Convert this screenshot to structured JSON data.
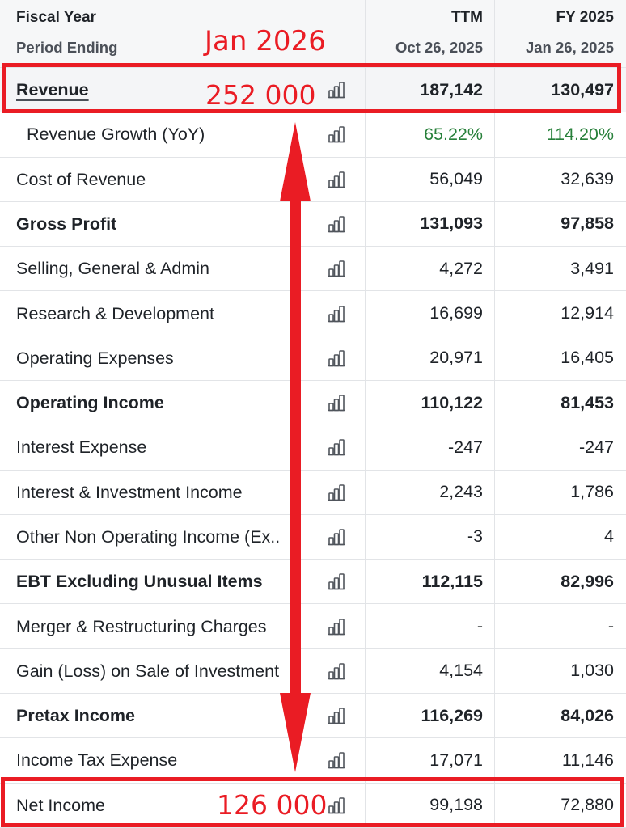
{
  "table": {
    "header": {
      "fiscal_year_label": "Fiscal Year",
      "period_ending_label": "Period Ending",
      "columns": [
        {
          "fiscal_year": "TTM",
          "period_ending": "Oct 26, 2025"
        },
        {
          "fiscal_year": "FY 2025",
          "period_ending": "Jan 26, 2025"
        }
      ]
    },
    "row_icon": "bar-chart-icon",
    "rows": [
      {
        "label": "Revenue",
        "values": [
          "187,142",
          "130,497"
        ]
      },
      {
        "label": "Revenue Growth (YoY)",
        "values": [
          "65.22%",
          "114.20%"
        ]
      },
      {
        "label": "Cost of Revenue",
        "values": [
          "56,049",
          "32,639"
        ]
      },
      {
        "label": "Gross Profit",
        "values": [
          "131,093",
          "97,858"
        ]
      },
      {
        "label": "Selling, General & Admin",
        "values": [
          "4,272",
          "3,491"
        ]
      },
      {
        "label": "Research & Development",
        "values": [
          "16,699",
          "12,914"
        ]
      },
      {
        "label": "Operating Expenses",
        "values": [
          "20,971",
          "16,405"
        ]
      },
      {
        "label": "Operating Income",
        "values": [
          "110,122",
          "81,453"
        ]
      },
      {
        "label": "Interest Expense",
        "values": [
          "-247",
          "-247"
        ]
      },
      {
        "label": "Interest & Investment Income",
        "values": [
          "2,243",
          "1,786"
        ]
      },
      {
        "label": "Other Non Operating Income (Ex..",
        "values": [
          "-3",
          "4"
        ]
      },
      {
        "label": "EBT Excluding Unusual Items",
        "values": [
          "112,115",
          "82,996"
        ]
      },
      {
        "label": "Merger & Restructuring Charges",
        "values": [
          "-",
          "-"
        ]
      },
      {
        "label": "Gain (Loss) on Sale of Investment",
        "values": [
          "4,154",
          "1,030"
        ]
      },
      {
        "label": "Pretax Income",
        "values": [
          "116,269",
          "84,026"
        ]
      },
      {
        "label": "Income Tax Expense",
        "values": [
          "17,071",
          "11,146"
        ]
      },
      {
        "label": "Net Income",
        "values": [
          "99,198",
          "72,880"
        ]
      }
    ]
  },
  "annotations": {
    "period_note": "Jan 2026",
    "revenue_note": "252 000",
    "net_income_note": "126 000"
  },
  "colors": {
    "annotation_red": "#ea1c24",
    "growth_positive": "#27803a",
    "text": "#1f2328",
    "muted_text": "#4b5058",
    "header_bg": "#f6f7f8",
    "highlight_bg": "#f4f5f7",
    "border": "#e2e4e7",
    "icon": "#50555c"
  }
}
